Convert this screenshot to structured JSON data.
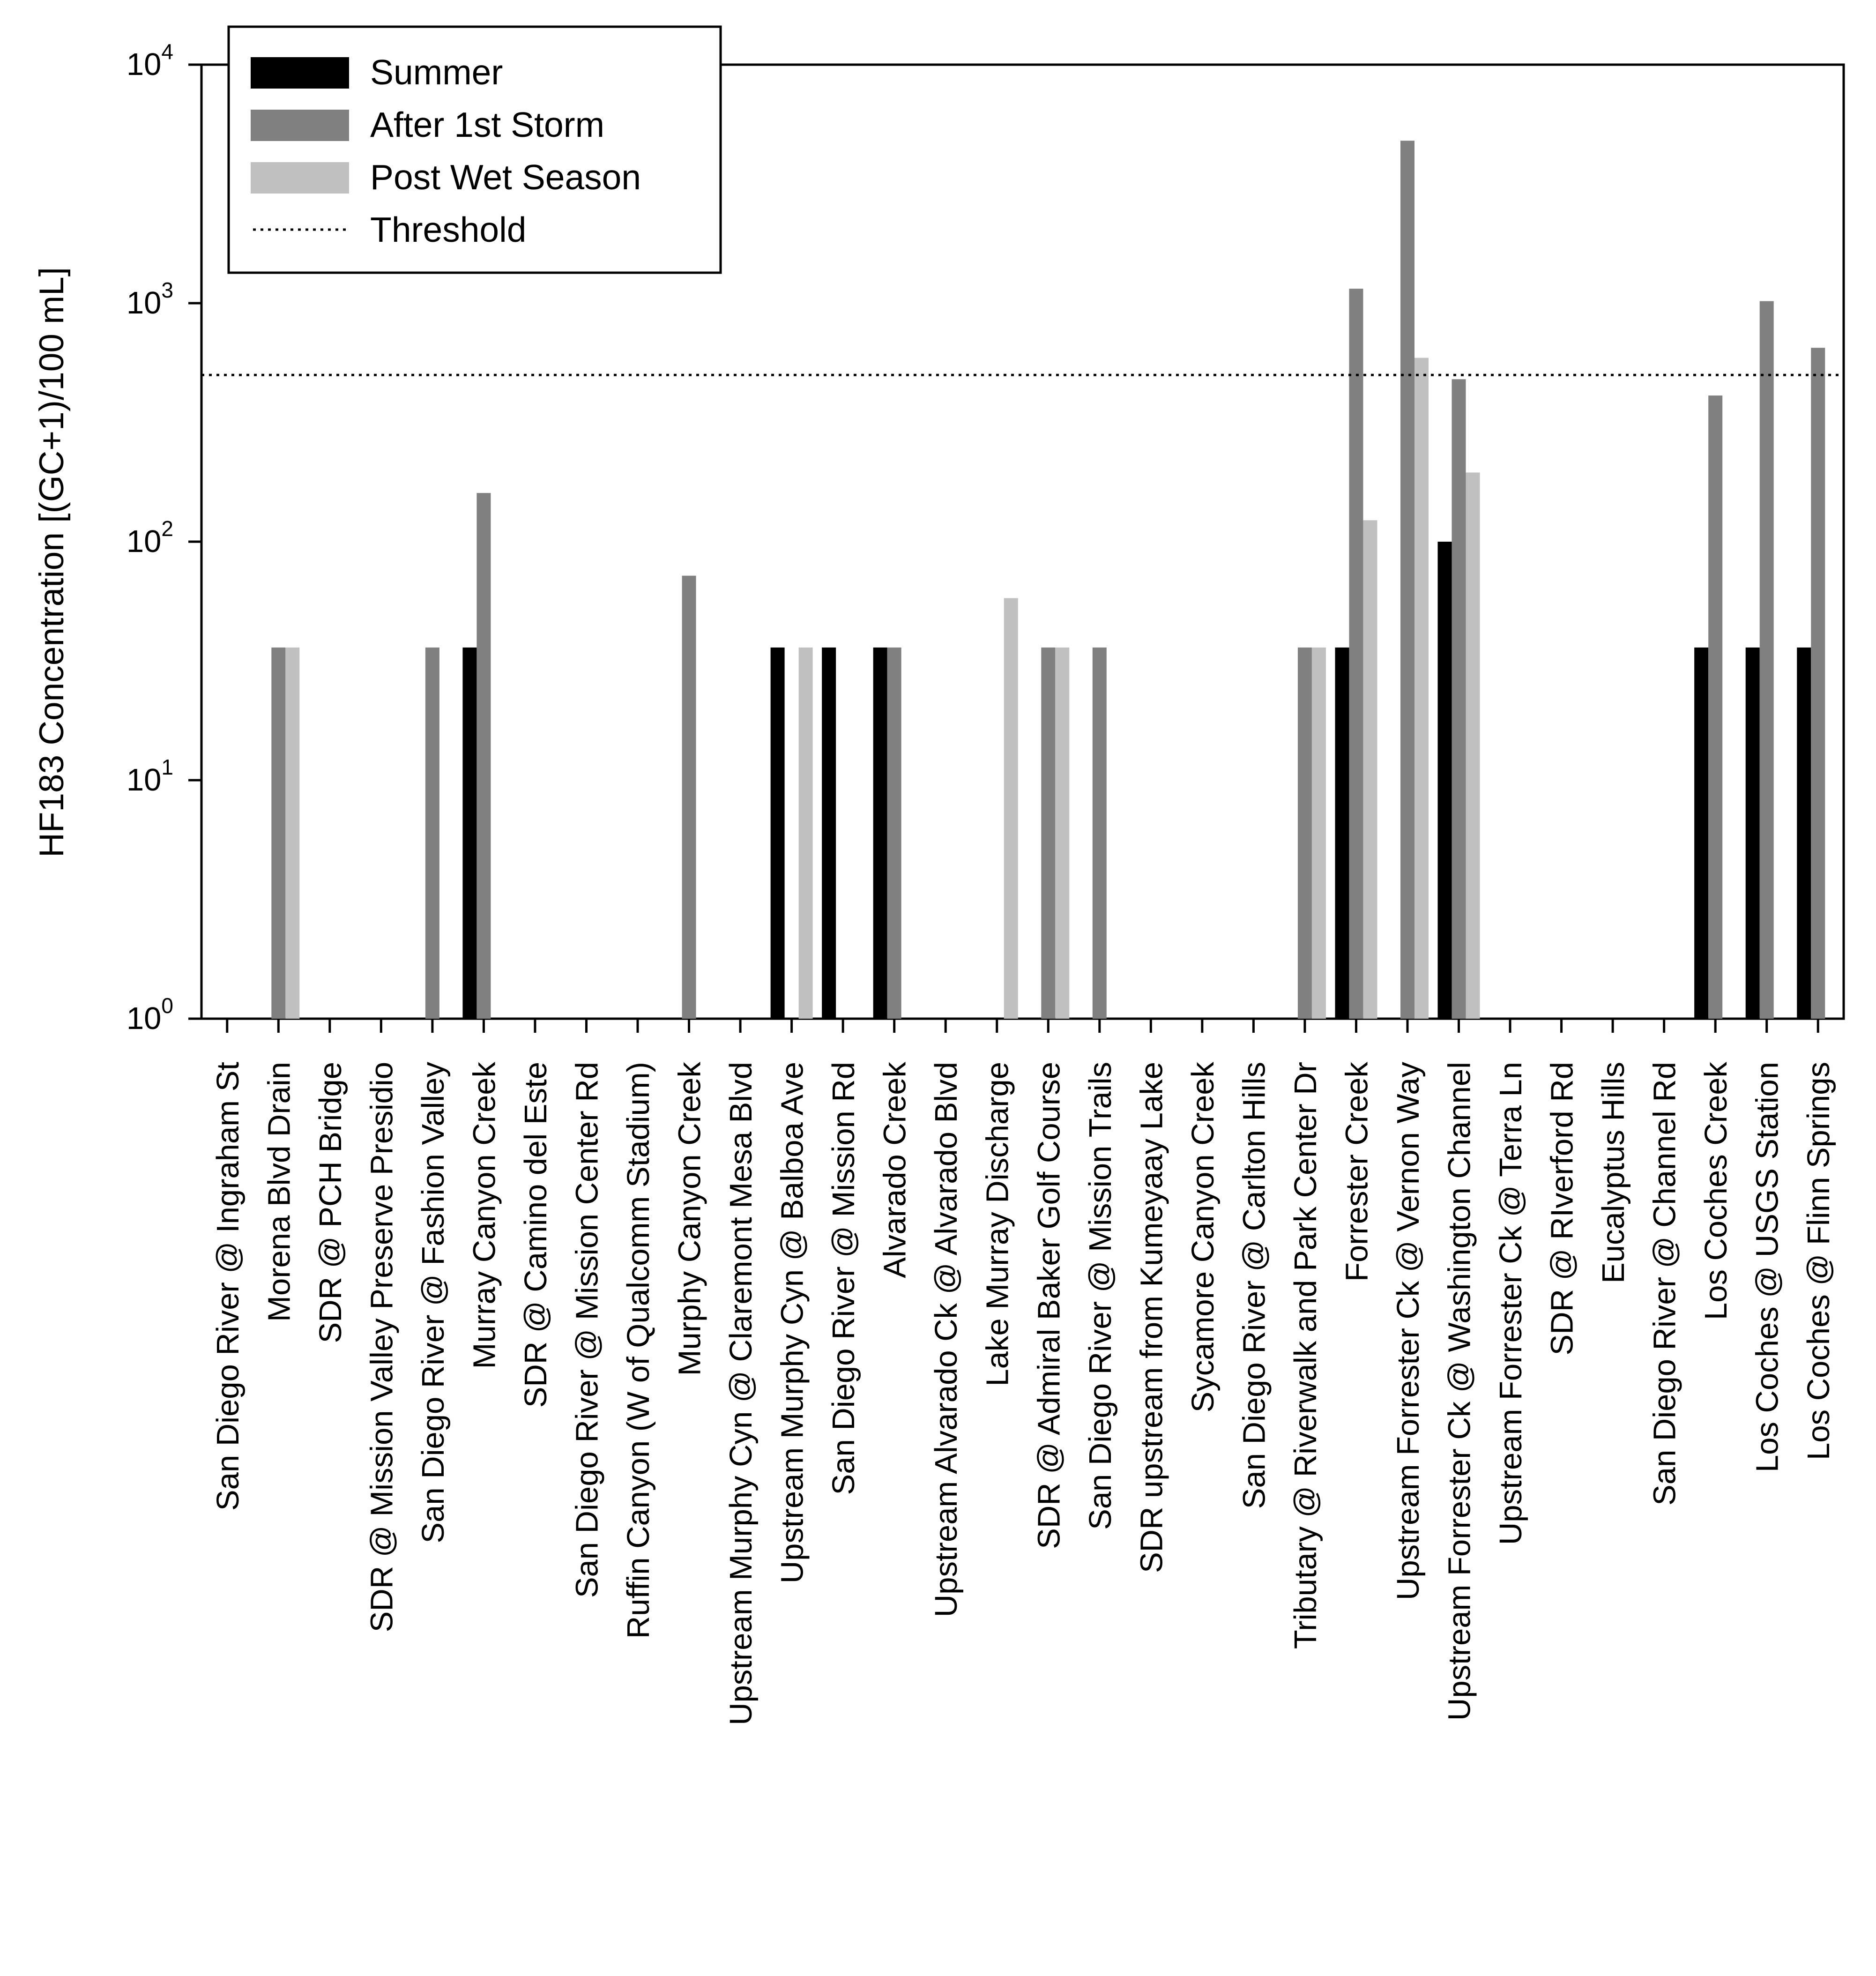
{
  "chart_data": {
    "type": "bar",
    "title": "",
    "xlabel": "",
    "ylabel": "HF183 Concentration [(GC+1)/100 mL]",
    "yscale": "log10",
    "ylim": [
      1,
      10000
    ],
    "yticks": [
      {
        "base": "10",
        "exp": "0",
        "value": 1
      },
      {
        "base": "10",
        "exp": "1",
        "value": 10
      },
      {
        "base": "10",
        "exp": "2",
        "value": 100
      },
      {
        "base": "10",
        "exp": "3",
        "value": 1000
      },
      {
        "base": "10",
        "exp": "4",
        "value": 10000
      }
    ],
    "threshold": {
      "label": "Threshold",
      "value": 500
    },
    "legend_position": "top-left",
    "categories": [
      "San Diego River @ Ingraham St",
      "Morena Blvd Drain",
      "SDR @ PCH Bridge",
      "SDR @ Mission Valley Preserve Presidio",
      "San Diego River @ Fashion Valley",
      "Murray Canyon Creek",
      "SDR @ Camino del Este",
      "San Diego River @ Mission Center Rd",
      "Ruffin Canyon (W of Qualcomm Stadium)",
      "Murphy Canyon Creek",
      "Upstream Murphy Cyn @ Claremont Mesa Blvd",
      "Upstream Murphy Cyn @ Balboa Ave",
      "San Diego River @ Mission Rd",
      "Alvarado Creek",
      "Upstream Alvarado Ck @ Alvarado Blvd",
      "Lake Murray Discharge",
      "SDR @ Admiral Baker Golf Course",
      "San Diego River @ Mission Trails",
      "SDR upstream from Kumeyaay Lake",
      "Sycamore Canyon Creek",
      "San Diego River @ Carlton Hills",
      "Tributary @ Riverwalk and Park Center Dr",
      "Forrester Creek",
      "Upstream Forrester Ck @ Vernon Way",
      "Upstream Forrester Ck @ Washington Channel",
      "Upstream Forrester Ck @ Terra Ln",
      "SDR @ RIverford Rd",
      "Eucalyptus Hills",
      "San Diego River @ Channel Rd",
      "Los Coches Creek",
      "Los Coches @ USGS Station",
      "Los Coches @ Flinn Springs"
    ],
    "series": [
      {
        "name": "Summer",
        "color": "#000000",
        "values": [
          1,
          1,
          1,
          1,
          1,
          36,
          1,
          1,
          1,
          1,
          1,
          36,
          36,
          36,
          1,
          1,
          1,
          1,
          1,
          1,
          1,
          1,
          36,
          1,
          100,
          1,
          1,
          1,
          1,
          36,
          36,
          36
        ]
      },
      {
        "name": "After 1st Storm",
        "color": "#808080",
        "values": [
          1,
          36,
          1,
          1,
          36,
          160,
          1,
          1,
          1,
          72,
          1,
          1,
          1,
          36,
          1,
          1,
          36,
          36,
          1,
          1,
          1,
          36,
          1150,
          4800,
          480,
          1,
          1,
          1,
          1,
          410,
          1020,
          650
        ]
      },
      {
        "name": "Post Wet Season",
        "color": "#c0c0c0",
        "values": [
          1,
          36,
          1,
          1,
          1,
          1,
          1,
          1,
          1,
          1,
          1,
          36,
          1,
          1,
          1,
          58,
          36,
          1,
          1,
          1,
          1,
          36,
          123,
          590,
          195,
          1,
          1,
          1,
          1,
          1,
          1,
          1
        ]
      }
    ]
  }
}
